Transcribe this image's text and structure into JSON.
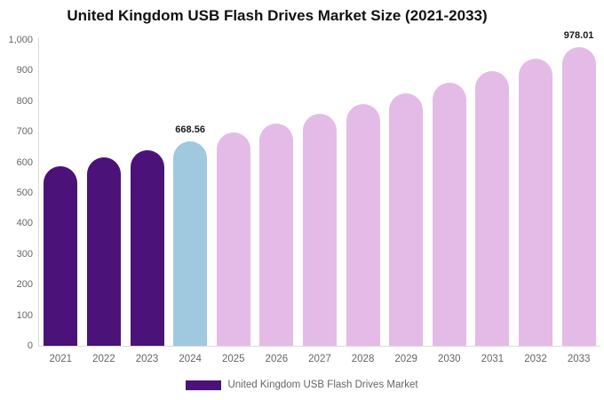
{
  "chart_data": {
    "type": "bar",
    "title": "United Kingdom USB Flash Drives Market Size (2021-2033)",
    "categories": [
      "2021",
      "2022",
      "2023",
      "2024",
      "2025",
      "2026",
      "2027",
      "2028",
      "2029",
      "2030",
      "2031",
      "2032",
      "2033"
    ],
    "values": [
      587.9,
      615.3,
      641.0,
      668.56,
      697.4,
      727.6,
      759.0,
      791.8,
      826.0,
      861.7,
      899.0,
      937.8,
      978.01
    ],
    "bar_colors": [
      "#4B1279",
      "#4B1279",
      "#4B1279",
      "#A0C9DF",
      "#E4BBE6",
      "#E4BBE6",
      "#E4BBE6",
      "#E4BBE6",
      "#E4BBE6",
      "#E4BBE6",
      "#E4BBE6",
      "#E4BBE6",
      "#E4BBE6"
    ],
    "labeled_points": [
      {
        "category": "2024",
        "text": "668.56"
      },
      {
        "category": "2033",
        "text": "978.01"
      }
    ],
    "ylim": [
      0,
      1000
    ],
    "y_ticks": [
      {
        "label": "0",
        "value": 0
      },
      {
        "label": "100",
        "value": 100
      },
      {
        "label": "200",
        "value": 200
      },
      {
        "label": "300",
        "value": 300
      },
      {
        "label": "400",
        "value": 400
      },
      {
        "label": "500",
        "value": 500
      },
      {
        "label": "600",
        "value": 600
      },
      {
        "label": "700",
        "value": 700
      },
      {
        "label": "800",
        "value": 800
      },
      {
        "label": "900",
        "value": 900
      },
      {
        "label": "1,000",
        "value": 1000
      }
    ],
    "grid": false,
    "legend": {
      "position": "bottom",
      "items": [
        {
          "label": "United Kingdom USB Flash Drives Market",
          "color": "#4B1279"
        }
      ]
    },
    "colors": {
      "historical_bar": "#4B1279",
      "base_year_bar": "#A0C9DF",
      "forecast_bar": "#E4BBE6",
      "axis_line": "#DBDBDB",
      "tick_text": "#666666",
      "title_text": "#111111"
    }
  }
}
